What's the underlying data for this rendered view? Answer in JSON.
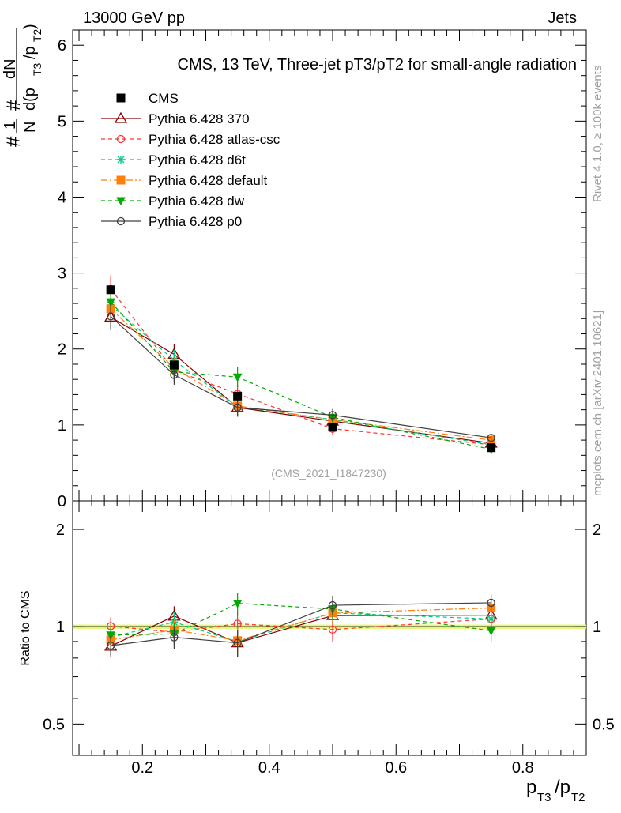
{
  "header": {
    "left": "13000 GeV pp",
    "right": "Jets"
  },
  "side": {
    "rivet": "Rivet 4.1.0, ≥ 100k events",
    "mcplots": "mcplots.cern.ch [arXiv:2401.10621]"
  },
  "watermark": "(CMS_2021_I1847230)",
  "chart_data": {
    "type": "line",
    "title": "CMS, 13 TeV, Three-jet pT3/pT2 for small-angle radiation",
    "ylabel": "#frac{1}{N} #frac{dN}{d(p_{T3}/p_{T2})}",
    "ylabel_parts": {
      "hash1": "#",
      "one": "1",
      "nn": "N",
      "hash2": "#",
      "dn": "dN",
      "dpre": "d(p",
      "t3": "T3",
      "slash": "/p",
      "t2": "T2",
      "close": ")"
    },
    "xlabel_parts": {
      "p1": "p",
      "s1": "T3",
      "mid": "/p",
      "s2": "T2"
    },
    "xlim": [
      0.09,
      0.9
    ],
    "ylim": [
      0,
      6.2
    ],
    "x": [
      0.15,
      0.25,
      0.35,
      0.5,
      0.75
    ],
    "xticks": [
      0.2,
      0.4,
      0.6,
      0.8
    ],
    "xtick_labels": [
      "0.2",
      "0.4",
      "0.6",
      "0.8"
    ],
    "yticks": [
      0,
      1,
      2,
      3,
      4,
      5,
      6
    ],
    "ytick_labels": [
      "0",
      "1",
      "2",
      "3",
      "4",
      "5",
      "6"
    ],
    "series": [
      {
        "name": "CMS",
        "color": "#000000",
        "marker": "square-filled",
        "line": "none",
        "values": [
          2.78,
          1.79,
          1.38,
          0.97,
          0.7
        ],
        "err": [
          0.05,
          0.05,
          0.05,
          0.04,
          0.03
        ]
      },
      {
        "name": "Pythia 6.428 370",
        "color": "#8b0000",
        "marker": "triangle-open",
        "line": "solid",
        "values": [
          2.42,
          1.93,
          1.23,
          1.05,
          0.76
        ],
        "err": [
          0.17,
          0.14,
          0.12,
          0.08,
          0.05
        ]
      },
      {
        "name": "Pythia 6.428 atlas-csc",
        "color": "#ff3333",
        "marker": "circle-open",
        "line": "dashed",
        "values": [
          2.79,
          1.72,
          1.41,
          0.95,
          0.74
        ],
        "err": [
          0.18,
          0.13,
          0.12,
          0.08,
          0.05
        ]
      },
      {
        "name": "Pythia 6.428 d6t",
        "color": "#00cc88",
        "marker": "star",
        "line": "dashed",
        "values": [
          2.58,
          1.85,
          1.24,
          1.07,
          0.74
        ],
        "err": [
          0.17,
          0.14,
          0.12,
          0.08,
          0.05
        ]
      },
      {
        "name": "Pythia 6.428 default",
        "color": "#ff7f0e",
        "marker": "square-filled",
        "line": "dashdot",
        "values": [
          2.53,
          1.75,
          1.25,
          1.07,
          0.8
        ],
        "err": [
          0.17,
          0.13,
          0.12,
          0.08,
          0.05
        ]
      },
      {
        "name": "Pythia 6.428 dw",
        "color": "#00aa00",
        "marker": "triangle-down-filled",
        "line": "dashed",
        "values": [
          2.62,
          1.7,
          1.63,
          1.1,
          0.68
        ],
        "err": [
          0.17,
          0.13,
          0.13,
          0.08,
          0.05
        ]
      },
      {
        "name": "Pythia 6.428 p0",
        "color": "#404040",
        "marker": "circle-open",
        "line": "solid",
        "values": [
          2.43,
          1.66,
          1.23,
          1.13,
          0.83
        ],
        "err": [
          0.17,
          0.13,
          0.12,
          0.08,
          0.05
        ]
      }
    ],
    "ratio": {
      "ylabel": "Ratio to CMS",
      "ylim": [
        0.4,
        2.45
      ],
      "yscale": "log",
      "yticks": [
        0.5,
        1,
        2
      ],
      "ytick_labels": [
        "0.5",
        "1",
        "2"
      ],
      "band": [
        0.985,
        1.015
      ]
    }
  }
}
